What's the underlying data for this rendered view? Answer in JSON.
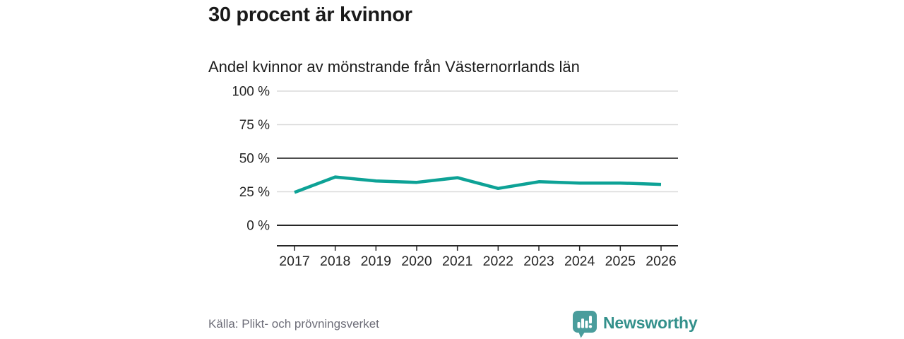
{
  "chart_data": {
    "type": "line",
    "title": "30 procent är kvinnor",
    "subtitle": "Andel kvinnor av mönstrande från Västernorrlands län",
    "x": [
      "2017",
      "2018",
      "2019",
      "2020",
      "2021",
      "2022",
      "2023",
      "2024",
      "2025",
      "2026"
    ],
    "series": [
      {
        "name": "Andel kvinnor",
        "values": [
          24.5,
          36,
          33,
          32,
          35.5,
          27.5,
          32.5,
          31.5,
          31.5,
          30.5
        ]
      }
    ],
    "unit": "%",
    "ylim": [
      0,
      100
    ],
    "yticks": [
      0,
      25,
      50,
      75,
      100
    ],
    "ytick_labels": [
      "0 %",
      "25 %",
      "50 %",
      "75 %",
      "100 %"
    ],
    "emphasized_gridlines": [
      0,
      50
    ],
    "grid": true,
    "legend": "none",
    "colors": {
      "line": "#0da296",
      "grid_light": "#dadada",
      "grid_mid": "#4d4d4d",
      "axis": "#262626",
      "tick_text": "#262626"
    }
  },
  "footer": {
    "source": "Källa: Plikt- och prövningsverket",
    "brand": {
      "name": "Newsworthy",
      "icon": "newsworthy-speech-bubble-bar-chart-icon",
      "wordmark_color": "#33908b",
      "icon_color": "#4a9d9c"
    }
  }
}
